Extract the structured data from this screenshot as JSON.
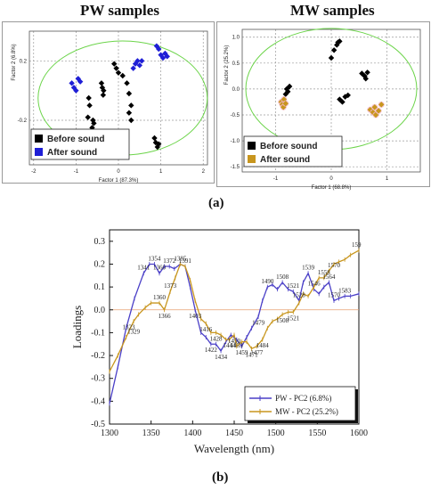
{
  "panel_a": {
    "caption": "(a)",
    "left": {
      "title": "PW samples",
      "xlabel": "Factor 1 (87.3%)",
      "ylabel": "Factor 2 (6.8%)",
      "xticks": [
        "-2",
        "-1",
        "0",
        "1",
        "2"
      ],
      "yticks": [
        "0.2",
        "-0.2"
      ],
      "legend": [
        {
          "label": "Before sound",
          "color": "#000000"
        },
        {
          "label": "After sound",
          "color": "#1f1fd6"
        }
      ],
      "points": {
        "before": [
          [
            -0.7,
            -0.05
          ],
          [
            -0.68,
            -0.1
          ],
          [
            -0.72,
            -0.18
          ],
          [
            -0.6,
            -0.2
          ],
          [
            -0.58,
            -0.22
          ],
          [
            -0.62,
            -0.25
          ],
          [
            -0.4,
            0.05
          ],
          [
            -0.38,
            0.02
          ],
          [
            -0.35,
            0
          ],
          [
            -0.36,
            -0.03
          ],
          [
            -0.1,
            0.18
          ],
          [
            -0.05,
            0.15
          ],
          [
            0.0,
            0.12
          ],
          [
            0.1,
            0.1
          ],
          [
            0.2,
            0.05
          ],
          [
            0.25,
            -0.02
          ],
          [
            0.3,
            -0.1
          ],
          [
            0.25,
            -0.15
          ],
          [
            0.3,
            -0.2
          ],
          [
            0.85,
            -0.32
          ],
          [
            0.88,
            -0.35
          ],
          [
            0.92,
            -0.38
          ],
          [
            0.95,
            -0.36
          ]
        ],
        "after": [
          [
            -1.1,
            0.05
          ],
          [
            -1.05,
            0.02
          ],
          [
            -1.0,
            0.0
          ],
          [
            -0.95,
            0.08
          ],
          [
            -0.9,
            0.06
          ],
          [
            0.35,
            0.15
          ],
          [
            0.4,
            0.18
          ],
          [
            0.45,
            0.2
          ],
          [
            0.5,
            0.17
          ],
          [
            0.55,
            0.2
          ],
          [
            0.9,
            0.3
          ],
          [
            0.95,
            0.28
          ],
          [
            1.0,
            0.24
          ],
          [
            1.05,
            0.22
          ],
          [
            1.1,
            0.25
          ],
          [
            1.15,
            0.23
          ]
        ]
      }
    },
    "right": {
      "title": "MW samples",
      "xlabel": "Factor 1 (68.8%)",
      "ylabel": "Factor 2 (25.2%)",
      "xticks": [
        "-1",
        "0",
        "1"
      ],
      "yticks": [
        "1.0",
        "0.5",
        "0.0",
        "-0.5",
        "-1.0",
        "-1.5"
      ],
      "legend": [
        {
          "label": "Before sound",
          "color": "#000000"
        },
        {
          "label": "After sound",
          "color": "#c8961e"
        }
      ],
      "points": {
        "before": [
          [
            -0.8,
            0.0
          ],
          [
            -0.78,
            -0.05
          ],
          [
            -0.75,
            0.05
          ],
          [
            -0.82,
            -0.1
          ],
          [
            0.05,
            0.75
          ],
          [
            0.1,
            0.85
          ],
          [
            0.12,
            0.9
          ],
          [
            0.15,
            0.92
          ],
          [
            0.0,
            0.6
          ],
          [
            0.55,
            0.3
          ],
          [
            0.6,
            0.25
          ],
          [
            0.62,
            0.2
          ],
          [
            0.65,
            0.32
          ],
          [
            0.15,
            -0.2
          ],
          [
            0.2,
            -0.25
          ],
          [
            0.25,
            -0.15
          ],
          [
            0.3,
            -0.12
          ]
        ],
        "after": [
          [
            -0.9,
            -0.25
          ],
          [
            -0.88,
            -0.3
          ],
          [
            -0.85,
            -0.2
          ],
          [
            -0.86,
            -0.35
          ],
          [
            -0.82,
            -0.28
          ],
          [
            0.7,
            -0.4
          ],
          [
            0.75,
            -0.45
          ],
          [
            0.8,
            -0.5
          ],
          [
            0.85,
            -0.42
          ],
          [
            0.78,
            -0.35
          ],
          [
            0.9,
            -0.3
          ]
        ]
      }
    }
  },
  "panel_b": {
    "caption": "(b)",
    "chart_data": {
      "type": "line",
      "xlabel": "Wavelength (nm)",
      "ylabel": "Loadings",
      "xlim": [
        1300,
        1600
      ],
      "ylim": [
        -0.5,
        0.35
      ],
      "xticks": [
        1300,
        1350,
        1400,
        1450,
        1500,
        1550,
        1600
      ],
      "yticks": [
        0.3,
        0.2,
        0.1,
        0.0,
        -0.1,
        -0.2,
        -0.3,
        -0.4,
        -0.5
      ],
      "series": [
        {
          "name": "PW - PC2 (6.8%)",
          "color": "#4a3fc7",
          "x": [
            1300,
            1310,
            1320,
            1330,
            1341,
            1348,
            1354,
            1360,
            1366,
            1372,
            1378,
            1385,
            1391,
            1397,
            1403,
            1410,
            1416,
            1422,
            1428,
            1434,
            1440,
            1446,
            1453,
            1459,
            1465,
            1471,
            1479,
            1484,
            1490,
            1496,
            1502,
            1508,
            1515,
            1521,
            1528,
            1533,
            1539,
            1546,
            1552,
            1558,
            1564,
            1570,
            1576,
            1583,
            1590,
            1600
          ],
          "y": [
            -0.41,
            -0.25,
            -0.08,
            0.05,
            0.16,
            0.2,
            0.2,
            0.16,
            0.19,
            0.19,
            0.18,
            0.2,
            0.19,
            0.1,
            0.0,
            -0.1,
            -0.12,
            -0.15,
            -0.15,
            -0.18,
            -0.14,
            -0.11,
            -0.13,
            -0.16,
            -0.12,
            -0.08,
            -0.03,
            0.04,
            0.1,
            0.11,
            0.09,
            0.12,
            0.09,
            0.08,
            0.04,
            0.12,
            0.16,
            0.09,
            0.07,
            0.1,
            0.12,
            0.04,
            0.05,
            0.06,
            0.06,
            0.07
          ]
        },
        {
          "name": "MW - PC2 (25.2%)",
          "color": "#c8961e",
          "x": [
            1300,
            1310,
            1320,
            1329,
            1335,
            1343,
            1350,
            1360,
            1366,
            1373,
            1379,
            1385,
            1391,
            1397,
            1403,
            1410,
            1416,
            1422,
            1428,
            1434,
            1440,
            1444,
            1450,
            1453,
            1459,
            1465,
            1471,
            1477,
            1484,
            1490,
            1496,
            1502,
            1508,
            1515,
            1521,
            1528,
            1533,
            1539,
            1546,
            1552,
            1558,
            1564,
            1570,
            1576,
            1583,
            1590,
            1600
          ],
          "y": [
            -0.27,
            -0.2,
            -0.12,
            -0.05,
            -0.02,
            0.01,
            0.03,
            0.03,
            0.0,
            0.08,
            0.14,
            0.2,
            0.19,
            0.13,
            0.04,
            -0.04,
            -0.06,
            -0.1,
            -0.1,
            -0.11,
            -0.13,
            -0.13,
            -0.11,
            -0.16,
            -0.14,
            -0.14,
            -0.17,
            -0.16,
            -0.13,
            -0.08,
            -0.05,
            -0.04,
            -0.02,
            -0.01,
            -0.01,
            0.03,
            0.07,
            0.06,
            0.1,
            0.14,
            0.14,
            0.17,
            0.2,
            0.21,
            0.22,
            0.24,
            0.26
          ]
        }
      ],
      "annotations": [
        {
          "text": "1323",
          "x": 1323,
          "y": -0.05
        },
        {
          "text": "1329",
          "x": 1329,
          "y": -0.07
        },
        {
          "text": "1341",
          "x": 1341,
          "y": 0.16
        },
        {
          "text": "1354",
          "x": 1354,
          "y": 0.2
        },
        {
          "text": "1360",
          "x": 1360,
          "y": 0.16
        },
        {
          "text": "1360",
          "x": 1360,
          "y": 0.03
        },
        {
          "text": "1366",
          "x": 1366,
          "y": 0.0
        },
        {
          "text": "1372",
          "x": 1372,
          "y": 0.19
        },
        {
          "text": "1373",
          "x": 1373,
          "y": 0.08
        },
        {
          "text": "1385",
          "x": 1385,
          "y": 0.2
        },
        {
          "text": "1391",
          "x": 1391,
          "y": 0.19
        },
        {
          "text": "1403",
          "x": 1403,
          "y": 0.0
        },
        {
          "text": "1416",
          "x": 1416,
          "y": -0.06
        },
        {
          "text": "1422",
          "x": 1422,
          "y": -0.15
        },
        {
          "text": "1428",
          "x": 1428,
          "y": -0.1
        },
        {
          "text": "1434",
          "x": 1434,
          "y": -0.18
        },
        {
          "text": "1444",
          "x": 1444,
          "y": -0.13
        },
        {
          "text": "1450",
          "x": 1450,
          "y": -0.11
        },
        {
          "text": "1453",
          "x": 1453,
          "y": -0.13
        },
        {
          "text": "1459",
          "x": 1459,
          "y": -0.16
        },
        {
          "text": "1471",
          "x": 1471,
          "y": -0.17
        },
        {
          "text": "1477",
          "x": 1477,
          "y": -0.16
        },
        {
          "text": "1479",
          "x": 1479,
          "y": -0.03
        },
        {
          "text": "1484",
          "x": 1484,
          "y": -0.13
        },
        {
          "text": "1490",
          "x": 1490,
          "y": 0.1
        },
        {
          "text": "1508",
          "x": 1508,
          "y": 0.12
        },
        {
          "text": "1508",
          "x": 1508,
          "y": -0.02
        },
        {
          "text": "1521",
          "x": 1521,
          "y": 0.08
        },
        {
          "text": "1521",
          "x": 1521,
          "y": -0.01
        },
        {
          "text": "1528",
          "x": 1528,
          "y": 0.04
        },
        {
          "text": "1539",
          "x": 1539,
          "y": 0.16
        },
        {
          "text": "1546",
          "x": 1546,
          "y": 0.09
        },
        {
          "text": "1558",
          "x": 1558,
          "y": 0.14
        },
        {
          "text": "1564",
          "x": 1564,
          "y": 0.12
        },
        {
          "text": "1570",
          "x": 1570,
          "y": 0.17
        },
        {
          "text": "1570",
          "x": 1570,
          "y": 0.04
        },
        {
          "text": "1583",
          "x": 1583,
          "y": 0.06
        },
        {
          "text": "159",
          "x": 1597,
          "y": 0.26
        }
      ],
      "grid": false,
      "legend_position": "bottom-right"
    }
  }
}
